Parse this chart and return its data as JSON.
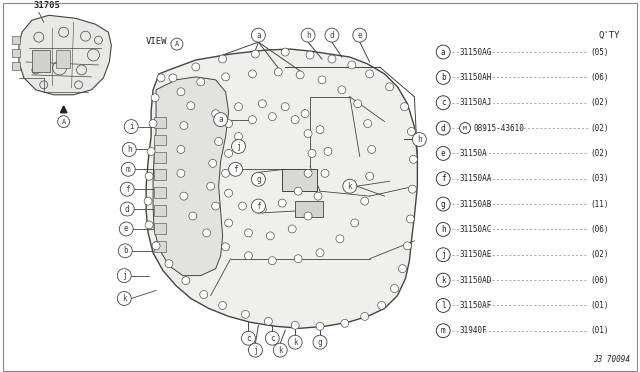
{
  "bg_color": "#ffffff",
  "line_color": "#444444",
  "thin_color": "#666666",
  "title_part": "31705",
  "view_label": "VIEW",
  "diagram_label": "J3 70094",
  "qty_label": "Q'TY",
  "legend_items": [
    {
      "label": "a",
      "part": "31150AG",
      "qty": "(05)"
    },
    {
      "label": "b",
      "part": "31150AH",
      "qty": "(06)"
    },
    {
      "label": "c",
      "part": "31150AJ",
      "qty": "(02)"
    },
    {
      "label": "d",
      "part": "08915-43610",
      "qty": "(02)",
      "special": true
    },
    {
      "label": "e",
      "part": "31150A",
      "qty": "(02)"
    },
    {
      "label": "f",
      "part": "31150AA",
      "qty": "(03)"
    },
    {
      "label": "g",
      "part": "31150AB",
      "qty": "(11)"
    },
    {
      "label": "h",
      "part": "31150AC",
      "qty": "(06)"
    },
    {
      "label": "j",
      "part": "31150AE",
      "qty": "(02)"
    },
    {
      "label": "k",
      "part": "31150AD",
      "qty": "(06)"
    },
    {
      "label": "l",
      "part": "31150AF",
      "qty": "(01)"
    },
    {
      "label": "m",
      "part": "31940F",
      "qty": "(01)"
    }
  ],
  "font_color": "#222222"
}
